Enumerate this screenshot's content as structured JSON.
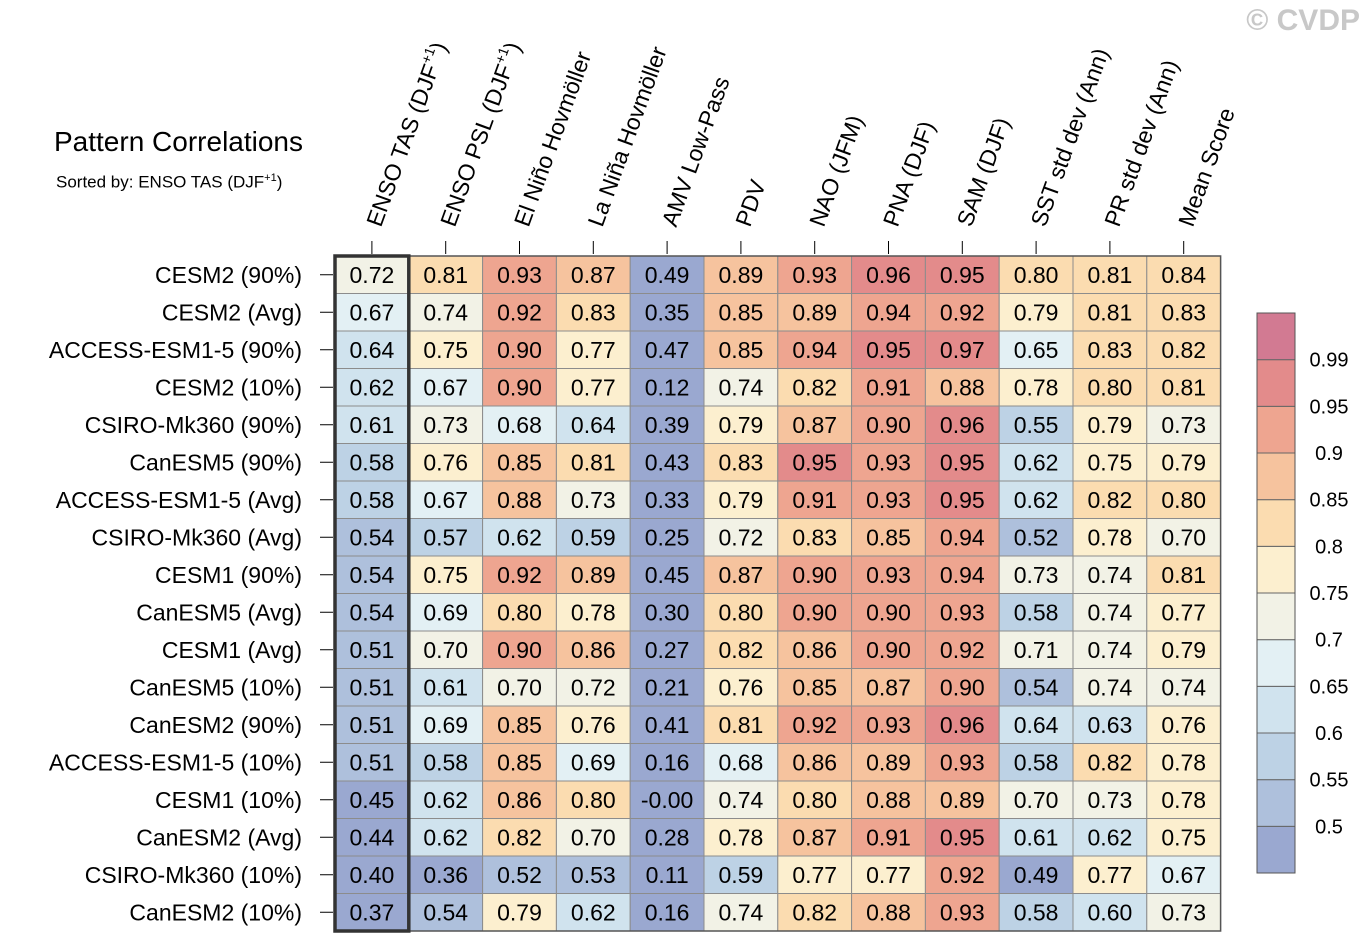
{
  "watermark": "© CVDP",
  "title": "Pattern Correlations",
  "subtitle_prefix": "Sorted by: ENSO TAS (DJF",
  "subtitle_sup": "+1",
  "subtitle_suffix": ")",
  "chart_data": {
    "type": "heatmap",
    "columns": [
      {
        "label": "ENSO TAS (DJF",
        "sup": "+1",
        "tail": ")"
      },
      {
        "label": "ENSO PSL (DJF",
        "sup": "+1",
        "tail": ")"
      },
      {
        "label": "El Niño Hovmöller",
        "sup": "",
        "tail": ""
      },
      {
        "label": "La Niña Hovmöller",
        "sup": "",
        "tail": ""
      },
      {
        "label": "AMV Low-Pass",
        "sup": "",
        "tail": ""
      },
      {
        "label": "PDV",
        "sup": "",
        "tail": ""
      },
      {
        "label": "NAO (JFM)",
        "sup": "",
        "tail": ""
      },
      {
        "label": "PNA (DJF)",
        "sup": "",
        "tail": ""
      },
      {
        "label": "SAM (DJF)",
        "sup": "",
        "tail": ""
      },
      {
        "label": "SST std dev (Ann)",
        "sup": "",
        "tail": ""
      },
      {
        "label": "PR std dev (Ann)",
        "sup": "",
        "tail": ""
      },
      {
        "label": "Mean Score",
        "sup": "",
        "tail": ""
      }
    ],
    "rows": [
      "CESM2 (90%)",
      "CESM2 (Avg)",
      "ACCESS-ESM1-5 (90%)",
      "CESM2 (10%)",
      "CSIRO-Mk360 (90%)",
      "CanESM5 (90%)",
      "ACCESS-ESM1-5 (Avg)",
      "CSIRO-Mk360 (Avg)",
      "CESM1 (90%)",
      "CanESM5 (Avg)",
      "CESM1 (Avg)",
      "CanESM5 (10%)",
      "CanESM2 (90%)",
      "ACCESS-ESM1-5 (10%)",
      "CESM1 (10%)",
      "CanESM2 (Avg)",
      "CSIRO-Mk360 (10%)",
      "CanESM2 (10%)"
    ],
    "values": [
      [
        "0.72",
        "0.81",
        "0.93",
        "0.87",
        "0.49",
        "0.89",
        "0.93",
        "0.96",
        "0.95",
        "0.80",
        "0.81",
        "0.84"
      ],
      [
        "0.67",
        "0.74",
        "0.92",
        "0.83",
        "0.35",
        "0.85",
        "0.89",
        "0.94",
        "0.92",
        "0.79",
        "0.81",
        "0.83"
      ],
      [
        "0.64",
        "0.75",
        "0.90",
        "0.77",
        "0.47",
        "0.85",
        "0.94",
        "0.95",
        "0.97",
        "0.65",
        "0.83",
        "0.82"
      ],
      [
        "0.62",
        "0.67",
        "0.90",
        "0.77",
        "0.12",
        "0.74",
        "0.82",
        "0.91",
        "0.88",
        "0.78",
        "0.80",
        "0.81"
      ],
      [
        "0.61",
        "0.73",
        "0.68",
        "0.64",
        "0.39",
        "0.79",
        "0.87",
        "0.90",
        "0.96",
        "0.55",
        "0.79",
        "0.73"
      ],
      [
        "0.58",
        "0.76",
        "0.85",
        "0.81",
        "0.43",
        "0.83",
        "0.95",
        "0.93",
        "0.95",
        "0.62",
        "0.75",
        "0.79"
      ],
      [
        "0.58",
        "0.67",
        "0.88",
        "0.73",
        "0.33",
        "0.79",
        "0.91",
        "0.93",
        "0.95",
        "0.62",
        "0.82",
        "0.80"
      ],
      [
        "0.54",
        "0.57",
        "0.62",
        "0.59",
        "0.25",
        "0.72",
        "0.83",
        "0.85",
        "0.94",
        "0.52",
        "0.78",
        "0.70"
      ],
      [
        "0.54",
        "0.75",
        "0.92",
        "0.89",
        "0.45",
        "0.87",
        "0.90",
        "0.93",
        "0.94",
        "0.73",
        "0.74",
        "0.81"
      ],
      [
        "0.54",
        "0.69",
        "0.80",
        "0.78",
        "0.30",
        "0.80",
        "0.90",
        "0.90",
        "0.93",
        "0.58",
        "0.74",
        "0.77"
      ],
      [
        "0.51",
        "0.70",
        "0.90",
        "0.86",
        "0.27",
        "0.82",
        "0.86",
        "0.90",
        "0.92",
        "0.71",
        "0.74",
        "0.79"
      ],
      [
        "0.51",
        "0.61",
        "0.70",
        "0.72",
        "0.21",
        "0.76",
        "0.85",
        "0.87",
        "0.90",
        "0.54",
        "0.74",
        "0.74"
      ],
      [
        "0.51",
        "0.69",
        "0.85",
        "0.76",
        "0.41",
        "0.81",
        "0.92",
        "0.93",
        "0.96",
        "0.64",
        "0.63",
        "0.76"
      ],
      [
        "0.51",
        "0.58",
        "0.85",
        "0.69",
        "0.16",
        "0.68",
        "0.86",
        "0.89",
        "0.93",
        "0.58",
        "0.82",
        "0.78"
      ],
      [
        "0.45",
        "0.62",
        "0.86",
        "0.80",
        "-0.00",
        "0.74",
        "0.80",
        "0.88",
        "0.89",
        "0.70",
        "0.73",
        "0.78"
      ],
      [
        "0.44",
        "0.62",
        "0.82",
        "0.70",
        "0.28",
        "0.78",
        "0.87",
        "0.91",
        "0.95",
        "0.61",
        "0.62",
        "0.75"
      ],
      [
        "0.40",
        "0.36",
        "0.52",
        "0.53",
        "0.11",
        "0.59",
        "0.77",
        "0.77",
        "0.92",
        "0.49",
        "0.77",
        "0.67"
      ],
      [
        "0.37",
        "0.54",
        "0.79",
        "0.62",
        "0.16",
        "0.74",
        "0.82",
        "0.88",
        "0.93",
        "0.58",
        "0.60",
        "0.73"
      ]
    ],
    "highlight_column": 0,
    "colorbar": {
      "levels": [
        0.5,
        0.55,
        0.6,
        0.65,
        0.7,
        0.75,
        0.8,
        0.85,
        0.9,
        0.95,
        0.99
      ],
      "labels": [
        "0.5",
        "0.55",
        "0.6",
        "0.65",
        "0.7",
        "0.75",
        "0.8",
        "0.85",
        "0.9",
        "0.95",
        "0.99"
      ],
      "colors": [
        "#9aa8d0",
        "#aec0dc",
        "#bdd2e5",
        "#d0e3ee",
        "#e3f0f4",
        "#f2f2e6",
        "#fcefcf",
        "#fbdcb0",
        "#f6c39e",
        "#eea590",
        "#e38b8b",
        "#d27a92"
      ]
    }
  }
}
